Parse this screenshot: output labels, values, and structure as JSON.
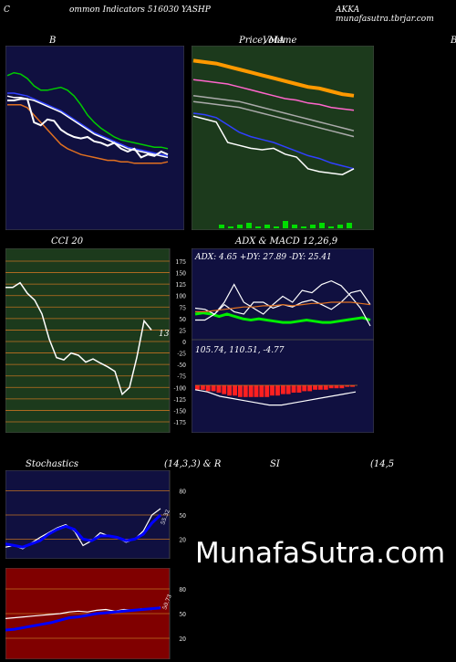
{
  "header": {
    "left": "C",
    "center": "ommon  Indicators 516030  YASHP",
    "right": "AKKA munafasutra.tbrjar.com"
  },
  "titles": {
    "bollinger": "B",
    "price_ma": "Price,  MA",
    "volume_overlay": "Volume",
    "right_edge": "B",
    "cci": "CCI 20",
    "adx_macd": "ADX  & MACD 12,26,9",
    "stochastics": "Stochastics",
    "stoch_params": "(14,3,3) & R",
    "rsi": "SI",
    "rsi_params": "(14,5"
  },
  "watermark": "MunafaSutra.com",
  "colors": {
    "bg_dark": "#101040",
    "bg_green": "#1c3a1c",
    "bg_red": "#800000",
    "grid": "#c07020"
  },
  "chart_data": [
    {
      "type": "line",
      "name": "bollinger",
      "ylim": [
        0,
        100
      ],
      "series": [
        {
          "name": "upper",
          "color": "#00cc00",
          "values": [
            92,
            94,
            93,
            90,
            85,
            82,
            82,
            83,
            84,
            82,
            78,
            72,
            65,
            60,
            56,
            53,
            50,
            48,
            47,
            46,
            45,
            44,
            43,
            43,
            42
          ]
        },
        {
          "name": "middle",
          "color": "#3040ff",
          "values": [
            80,
            80,
            79,
            78,
            76,
            74,
            72,
            70,
            68,
            65,
            62,
            59,
            56,
            53,
            51,
            49,
            47,
            45,
            43,
            42,
            41,
            40,
            39,
            38,
            37
          ]
        },
        {
          "name": "ma",
          "color": "#ffffff",
          "values": [
            78,
            77,
            77,
            76,
            75,
            73,
            71,
            69,
            67,
            64,
            61,
            58,
            55,
            52,
            50,
            48,
            46,
            44,
            42,
            41,
            40,
            39,
            38,
            37,
            36
          ]
        },
        {
          "name": "lower",
          "color": "#e07020",
          "values": [
            72,
            72,
            72,
            70,
            65,
            60,
            55,
            50,
            45,
            42,
            40,
            38,
            37,
            36,
            35,
            34,
            34,
            33,
            33,
            32,
            32,
            32,
            32,
            32,
            33
          ]
        },
        {
          "name": "price",
          "color": "#ffffff",
          "values": [
            75,
            75,
            76,
            76,
            60,
            58,
            62,
            61,
            55,
            52,
            50,
            49,
            50,
            47,
            46,
            44,
            46,
            42,
            40,
            42,
            36,
            38,
            37,
            40,
            38
          ]
        }
      ]
    },
    {
      "type": "line",
      "name": "price_ma",
      "ylim": [
        0,
        100
      ],
      "series": [
        {
          "name": "ma_orange",
          "color": "#ff9900",
          "values": [
            96,
            95,
            94,
            92,
            90,
            88,
            86,
            84,
            82,
            80,
            78,
            77,
            75,
            73,
            72
          ]
        },
        {
          "name": "ma_pink",
          "color": "#ff66cc",
          "values": [
            83,
            82,
            81,
            80,
            78,
            76,
            74,
            72,
            70,
            69,
            67,
            66,
            64,
            63,
            62
          ]
        },
        {
          "name": "ma_grey1",
          "color": "#aaaaaa",
          "values": [
            72,
            71,
            70,
            69,
            68,
            66,
            64,
            62,
            60,
            58,
            56,
            54,
            52,
            50,
            48
          ]
        },
        {
          "name": "ma_grey2",
          "color": "#aaaaaa",
          "values": [
            68,
            67,
            66,
            65,
            64,
            62,
            60,
            58,
            56,
            54,
            52,
            50,
            48,
            46,
            44
          ]
        },
        {
          "name": "ma_blue",
          "color": "#3040ff",
          "values": [
            60,
            59,
            57,
            52,
            47,
            44,
            42,
            40,
            37,
            34,
            31,
            29,
            26,
            24,
            22
          ]
        },
        {
          "name": "price",
          "color": "#ffffff",
          "values": [
            58,
            56,
            54,
            40,
            38,
            36,
            35,
            36,
            32,
            30,
            22,
            20,
            19,
            18,
            22
          ]
        }
      ],
      "volume": [
        2,
        1,
        2,
        3,
        1,
        2,
        1,
        4,
        2,
        1,
        2,
        3,
        1,
        2,
        3
      ]
    },
    {
      "type": "line",
      "name": "cci",
      "ylim": [
        -175,
        175
      ],
      "yticks": [
        175,
        150,
        125,
        100,
        75,
        50,
        25,
        0,
        -25,
        -50,
        -75,
        -100,
        -125,
        -150,
        -175
      ],
      "label": "13",
      "values": [
        118,
        118,
        128,
        105,
        90,
        60,
        5,
        -35,
        -40,
        -25,
        -30,
        -45,
        -38,
        -47,
        -55,
        -65,
        -115,
        -100,
        -35,
        45,
        25
      ]
    },
    {
      "type": "line",
      "name": "adx",
      "label": "ADX: 4.65  +DY: 27.89 -DY: 25.41",
      "ylim": [
        0,
        60
      ],
      "series": [
        {
          "name": "adx",
          "color": "#00ee00",
          "values": [
            20,
            21,
            20,
            18,
            20,
            18,
            16,
            15,
            16,
            15,
            14,
            13,
            13,
            14,
            15,
            14,
            13,
            13,
            14,
            15,
            16,
            17,
            15
          ]
        },
        {
          "name": "pdi",
          "color": "#ffffff",
          "values": [
            25,
            24,
            20,
            30,
            45,
            30,
            25,
            20,
            28,
            35,
            30,
            40,
            38,
            45,
            48,
            44,
            35,
            25,
            10
          ]
        },
        {
          "name": "mdi",
          "color": "#ffffff",
          "values": [
            15,
            15,
            20,
            28,
            22,
            20,
            30,
            30,
            25,
            28,
            26,
            30,
            32,
            28,
            24,
            30,
            38,
            40,
            28
          ]
        },
        {
          "name": "signal",
          "color": "#e07020",
          "values": [
            22,
            22,
            23,
            24,
            25,
            26,
            26,
            27,
            27,
            28,
            27,
            28,
            29,
            29,
            30,
            30,
            30,
            29,
            28
          ]
        }
      ]
    },
    {
      "type": "bar",
      "name": "macd",
      "label": "105.74,  110.51,  -4.77",
      "ylim": [
        -12,
        0
      ],
      "values": [
        -3,
        -3,
        -4,
        -4,
        -5,
        -6,
        -7,
        -7,
        -8,
        -8,
        -8,
        -8,
        -8,
        -8,
        -7,
        -7,
        -6,
        -6,
        -5,
        -5,
        -4,
        -4,
        -3,
        -3,
        -3,
        -2,
        -2,
        -2,
        -1,
        -1
      ]
    },
    {
      "type": "line",
      "name": "stochastics",
      "ylim": [
        0,
        100
      ],
      "yticks": [
        80,
        50,
        20
      ],
      "label": "55.32",
      "series": [
        {
          "name": "k",
          "color": "#ffffff",
          "values": [
            10,
            12,
            8,
            15,
            22,
            28,
            34,
            38,
            30,
            12,
            18,
            28,
            24,
            22,
            16,
            20,
            30,
            50,
            58
          ]
        },
        {
          "name": "d",
          "color": "#0000ff",
          "values": [
            14,
            12,
            10,
            14,
            18,
            26,
            32,
            36,
            32,
            20,
            18,
            24,
            24,
            22,
            18,
            20,
            26,
            40,
            50
          ]
        }
      ]
    },
    {
      "type": "line",
      "name": "rsi",
      "ylim": [
        0,
        100
      ],
      "yticks": [
        80,
        50,
        20
      ],
      "label": "50.73",
      "series": [
        {
          "name": "rsi_white",
          "color": "#ffffff",
          "values": [
            44,
            45,
            46,
            47,
            48,
            49,
            50,
            52,
            53,
            52,
            54,
            55,
            53,
            55,
            54,
            56,
            55,
            58
          ]
        },
        {
          "name": "rsi_blue",
          "color": "#0000ff",
          "values": [
            30,
            31,
            33,
            35,
            37,
            39,
            42,
            45,
            46,
            48,
            50,
            51,
            52,
            53,
            54,
            55,
            56,
            57
          ]
        }
      ]
    }
  ]
}
